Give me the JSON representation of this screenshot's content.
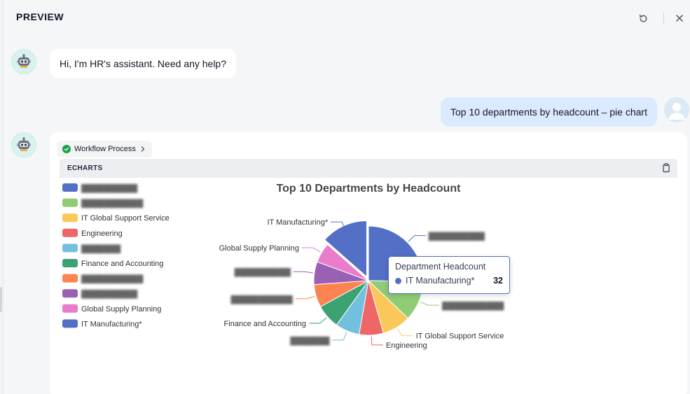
{
  "header": {
    "title": "PREVIEW"
  },
  "messages": {
    "bot_greeting": "Hi, I'm HR's assistant. Need any help?",
    "user_query": "Top 10 departments by headcount – pie chart"
  },
  "answer": {
    "workflow_label": "Workflow Process",
    "panel_label": "ECHARTS"
  },
  "chart_data": {
    "type": "pie",
    "title": "Top 10 Departments by Headcount",
    "legend_position": "left",
    "slices": [
      {
        "name": "▓▓▓▓▓▓▓▓▓▓",
        "value": 60,
        "color": "#5470c6",
        "redacted": true
      },
      {
        "name": "▓▓▓▓▓▓▓▓▓▓▓",
        "value": 28,
        "color": "#91cc75",
        "redacted": true
      },
      {
        "name": "IT Global Support Service",
        "value": 20,
        "color": "#fac858",
        "redacted": false
      },
      {
        "name": "Engineering",
        "value": 17,
        "color": "#ee6666",
        "redacted": false
      },
      {
        "name": "▓▓▓▓▓▓▓",
        "value": 17,
        "color": "#73c0de",
        "redacted": true
      },
      {
        "name": "Finance and Accounting",
        "value": 17,
        "color": "#3ba272",
        "redacted": false
      },
      {
        "name": "▓▓▓▓▓▓▓▓▓▓▓",
        "value": 16,
        "color": "#fc8452",
        "redacted": true
      },
      {
        "name": "▓▓▓▓▓▓▓▓▓▓",
        "value": 16,
        "color": "#9a60b4",
        "redacted": true
      },
      {
        "name": "Global Supply Planning",
        "value": 14,
        "color": "#ea7ccc",
        "redacted": false
      },
      {
        "name": "IT Manufacturing*",
        "value": 32,
        "color": "#5470c6",
        "redacted": false
      }
    ],
    "highlighted_slice": 9
  },
  "tooltip": {
    "title": "Department Headcount",
    "name": "IT Manufacturing*",
    "value": "32",
    "color": "#5470c6"
  }
}
